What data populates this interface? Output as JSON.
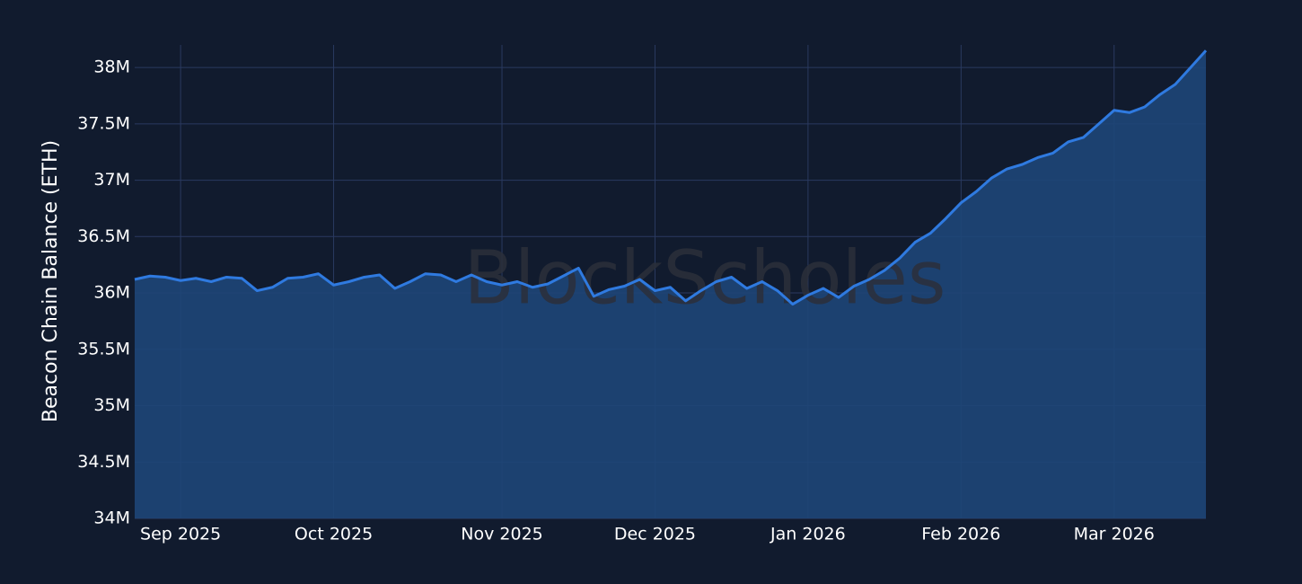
{
  "chart_data": {
    "type": "area",
    "y_label": "Beacon Chain Balance (ETH)",
    "watermark": "BlockScholes",
    "categories": [
      null,
      null,
      null,
      "Sep 2025",
      null,
      null,
      null,
      null,
      null,
      null,
      null,
      null,
      null,
      "Oct 2025",
      null,
      null,
      null,
      null,
      null,
      null,
      null,
      null,
      null,
      null,
      "Nov 2025",
      null,
      null,
      null,
      null,
      null,
      null,
      null,
      null,
      null,
      "Dec 2025",
      null,
      null,
      null,
      null,
      null,
      null,
      null,
      null,
      null,
      "Jan 2026",
      null,
      null,
      null,
      null,
      null,
      null,
      null,
      null,
      null,
      "Feb 2026",
      null,
      null,
      null,
      null,
      null,
      null,
      null,
      null,
      null,
      "Mar 2026",
      null,
      null,
      null,
      null,
      null,
      null
    ],
    "series": [
      {
        "name": "Beacon Chain Balance",
        "color": "#2f7ae0",
        "fill": "#1e4678",
        "values": [
          36120000,
          36150000,
          36140000,
          36110000,
          36130000,
          36100000,
          36140000,
          36130000,
          36020000,
          36050000,
          36130000,
          36140000,
          36170000,
          36070000,
          36100000,
          36140000,
          36160000,
          36040000,
          36100000,
          36170000,
          36160000,
          36100000,
          36160000,
          36100000,
          36070000,
          36100000,
          36050000,
          36080000,
          36150000,
          36220000,
          35970000,
          36030000,
          36060000,
          36120000,
          36020000,
          36050000,
          35930000,
          36020000,
          36100000,
          36140000,
          36040000,
          36100000,
          36020000,
          35900000,
          35980000,
          36040000,
          35960000,
          36060000,
          36120000,
          36200000,
          36310000,
          36450000,
          36530000,
          36660000,
          36800000,
          36900000,
          37020000,
          37100000,
          37140000,
          37200000,
          37240000,
          37340000,
          37380000,
          37500000,
          37620000,
          37600000,
          37650000,
          37760000,
          37850000,
          38000000,
          38150000
        ]
      }
    ],
    "ylim": [
      34000000,
      38200000
    ],
    "yticks": [
      {
        "value": 34000000,
        "label": "34M"
      },
      {
        "value": 34500000,
        "label": "34.5M"
      },
      {
        "value": 35000000,
        "label": "35M"
      },
      {
        "value": 35500000,
        "label": "35.5M"
      },
      {
        "value": 36000000,
        "label": "36M"
      },
      {
        "value": 36500000,
        "label": "36.5M"
      },
      {
        "value": 37000000,
        "label": "37M"
      },
      {
        "value": 37500000,
        "label": "37.5M"
      },
      {
        "value": 38000000,
        "label": "38M"
      }
    ],
    "grid": true
  }
}
